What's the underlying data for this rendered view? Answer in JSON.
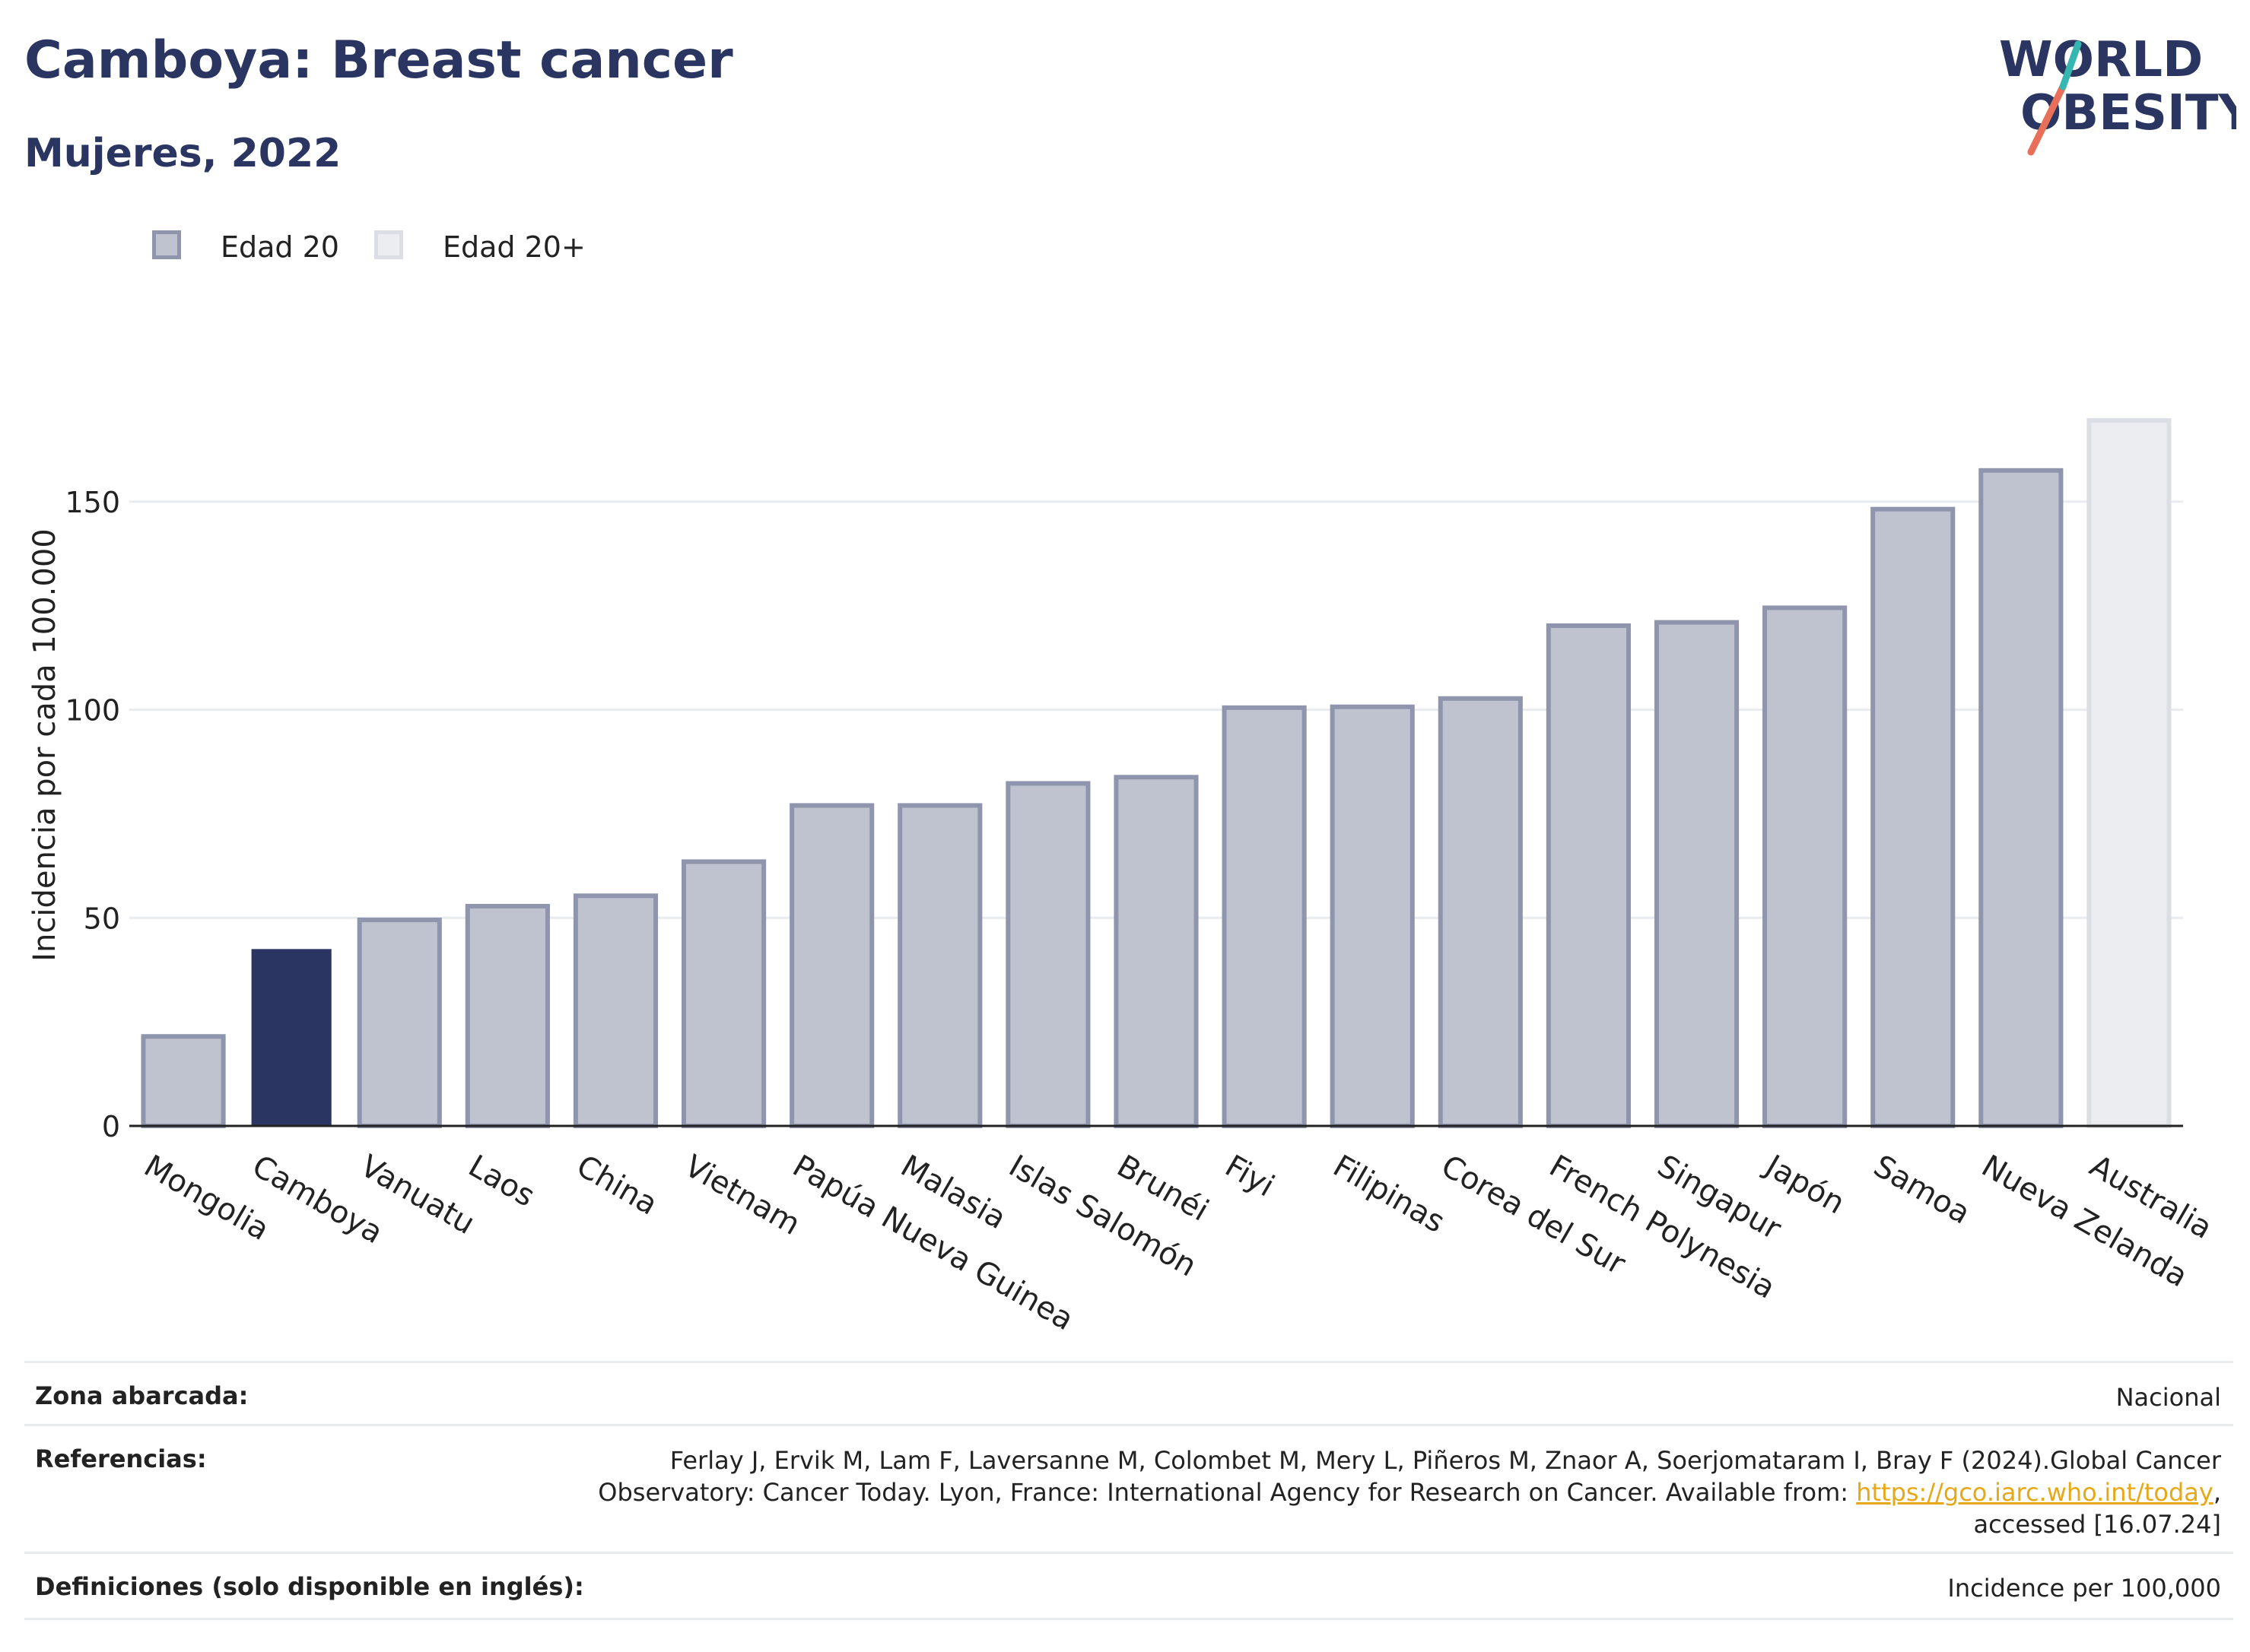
{
  "header": {
    "title": "Camboya: Breast cancer",
    "subtitle": "Mujeres, 2022",
    "logo_line1": "WORLD",
    "logo_line2": "OBESITY"
  },
  "legend": [
    {
      "label": "Edad 20",
      "color": "#bfc3cf",
      "border": "#8f95ad"
    },
    {
      "label": "Edad 20+",
      "color": "#ecedf1",
      "border": "#dcdee5"
    }
  ],
  "chart_data": {
    "type": "bar",
    "title": "Camboya: Breast cancer",
    "subtitle": "Mujeres, 2022",
    "xlabel": "",
    "ylabel": "Incidencia por cada 100.000",
    "ylim": [
      0,
      175
    ],
    "yticks": [
      0,
      50,
      100,
      150
    ],
    "grid": true,
    "legend_position": "top-left",
    "categories": [
      "Mongolia",
      "Camboya",
      "Vanuatu",
      "Laos",
      "China",
      "Vietnam",
      "Papúa Nueva Guinea",
      "Malasia",
      "Islas Salomón",
      "Brunéi",
      "Fiyi",
      "Filipinas",
      "Corea del Sur",
      "French Polynesia",
      "Singapur",
      "Japón",
      "Samoa",
      "Nueva Zelanda",
      "Australia"
    ],
    "values": [
      21.5,
      42.5,
      49.5,
      52.8,
      55.3,
      63.5,
      77.0,
      77.0,
      82.3,
      83.8,
      100.5,
      100.7,
      102.7,
      120.2,
      121.0,
      124.5,
      148.2,
      157.5,
      169.5
    ],
    "series_group": [
      "Edad 20",
      "Edad 20",
      "Edad 20",
      "Edad 20",
      "Edad 20",
      "Edad 20",
      "Edad 20",
      "Edad 20",
      "Edad 20",
      "Edad 20",
      "Edad 20",
      "Edad 20",
      "Edad 20",
      "Edad 20",
      "Edad 20",
      "Edad 20",
      "Edad 20",
      "Edad 20",
      "Edad 20+"
    ],
    "highlight": "Camboya",
    "colors": {
      "default": "#bfc3cf",
      "default_border": "#8f95ad",
      "highlight": "#2a3661",
      "age20plus": "#ecedf1",
      "age20plus_border": "#dcdee5",
      "grid": "#e8ebef",
      "axis": "#222222"
    }
  },
  "footer": {
    "zona_label": "Zona abarcada:",
    "zona_value": "Nacional",
    "ref_label": "Referencias:",
    "ref_line1": "Ferlay J, Ervik M, Lam F, Laversanne M, Colombet M, Mery L, Piñeros M, Znaor A, Soerjomataram I, Bray F (2024).Global Cancer",
    "ref_line2_prefix": "Observatory: Cancer Today. Lyon, France: International Agency for Research on Cancer. Available from: ",
    "ref_link": "https://gco.iarc.who.int/today",
    "ref_line2_suffix": ",",
    "ref_line3": "accessed [16.07.24]",
    "def_label": "Definiciones (solo disponible en inglés):",
    "def_value": "Incidence per 100,000"
  }
}
